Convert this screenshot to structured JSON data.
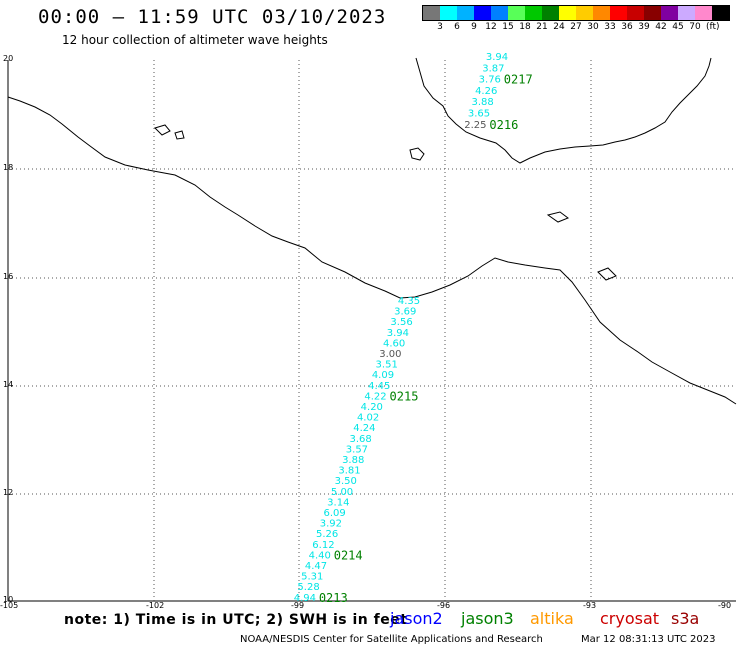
{
  "header": {
    "title": "00:00 – 11:59 UTC 03/10/2023",
    "subtitle": "12 hour collection of altimeter wave heights"
  },
  "legend": {
    "colors": [
      "#777777",
      "#00ffff",
      "#00b2ff",
      "#0000ff",
      "#0080ff",
      "#58ff58",
      "#00c800",
      "#008000",
      "#ffff00",
      "#ffcc00",
      "#ff8800",
      "#ff0000",
      "#c80000",
      "#880000",
      "#8000a0",
      "#ccaaff",
      "#ff88cc",
      "#000000"
    ],
    "ticks": [
      "3",
      "6",
      "9",
      "12",
      "15",
      "18",
      "21",
      "24",
      "27",
      "30",
      "33",
      "36",
      "39",
      "42",
      "45",
      "70"
    ],
    "unit": "(ft)"
  },
  "axes": {
    "lat_labels": [
      "20",
      "18",
      "16",
      "14",
      "12",
      "10"
    ],
    "lon_labels": [
      "-105",
      "-102",
      "-99",
      "-96",
      "-93",
      "-90"
    ]
  },
  "tracks": [
    {
      "name": "track-north",
      "color": "#00e5e5",
      "values": [
        "3.94",
        "3.87",
        "3.76",
        "4.26",
        "3.88",
        "3.65",
        "2.25"
      ],
      "anomaly_index": 6,
      "time_labels": [
        {
          "text": "0217",
          "after_index": 2
        },
        {
          "text": "0216",
          "after_index": 6
        }
      ]
    },
    {
      "name": "track-south",
      "color": "#00e5e5",
      "values": [
        "4.35",
        "3.69",
        "3.56",
        "3.94",
        "4.60",
        "3.00",
        "3.51",
        "4.09",
        "4.45",
        "4.22",
        "4.20",
        "4.02",
        "4.24",
        "3.68",
        "3.57",
        "3.88",
        "3.81",
        "3.50",
        "5.00",
        "3.14",
        "6.09",
        "3.92",
        "5.26",
        "6.12",
        "4.40",
        "4.47",
        "5.31",
        "5.28",
        "4.94"
      ],
      "anomaly_index": 5,
      "time_labels": [
        {
          "text": "0215",
          "after_index": 9
        },
        {
          "text": "0214",
          "after_index": 24
        },
        {
          "text": "0213",
          "after_index": 28
        }
      ]
    }
  ],
  "footer": {
    "note": "note: 1) Time is in UTC; 2) SWH is in feet",
    "satellites": [
      {
        "name": "jason2",
        "color": "#0000ff"
      },
      {
        "name": "jason3",
        "color": "#008000"
      },
      {
        "name": "altika",
        "color": "#ff9900"
      },
      {
        "name": "cryosat",
        "color": "#cc0000"
      },
      {
        "name": "s3a",
        "color": "#990000"
      }
    ],
    "credit": "NOAA/NESDIS Center for Satellite Applications and Research",
    "timestamp": "Mar 12 08:31:13 UTC 2023"
  }
}
